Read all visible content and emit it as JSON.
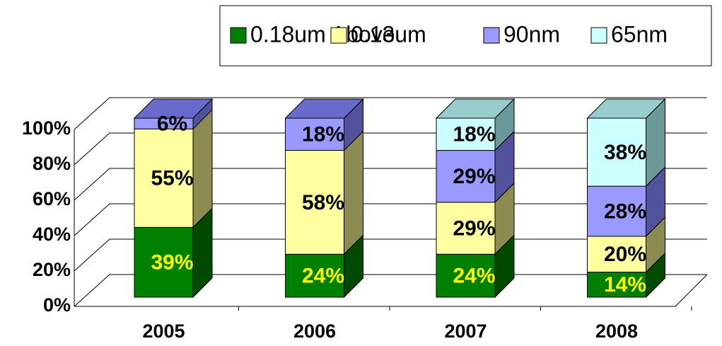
{
  "chart_data": {
    "type": "bar3d_stacked",
    "categories": [
      "2005",
      "2006",
      "2007",
      "2008"
    ],
    "series": [
      {
        "name": "0.18um Above",
        "color": "#008000",
        "side": "#004a00",
        "top": "#006400",
        "label_color": "#ffff00",
        "values": [
          39,
          24,
          24,
          14
        ],
        "value_labels": [
          "39%",
          "24%",
          "24%",
          "14%"
        ]
      },
      {
        "name": "0.13um",
        "color": "#ffffa0",
        "side": "#8c8c52",
        "top": "#c8c880",
        "label_color": "#000000",
        "values": [
          55,
          58,
          29,
          20
        ],
        "value_labels": [
          "55%",
          "58%",
          "29%",
          "20%"
        ]
      },
      {
        "name": "90nm",
        "color": "#9999ff",
        "side": "#52529c",
        "top": "#6a6acc",
        "label_color": "#000000",
        "values": [
          6,
          18,
          29,
          28
        ],
        "value_labels": [
          "6%",
          "18%",
          "29%",
          "28%"
        ]
      },
      {
        "name": "65nm",
        "color": "#ccffff",
        "side": "#6b9898",
        "top": "#99cccc",
        "label_color": "#000000",
        "values": [
          0,
          0,
          18,
          38
        ],
        "value_labels": [
          null,
          null,
          "18%",
          "38%"
        ]
      }
    ],
    "ylim": [
      0,
      100
    ],
    "yticks": [
      {
        "value": 0,
        "label": "0%"
      },
      {
        "value": 20,
        "label": "20%"
      },
      {
        "value": 40,
        "label": "40%"
      },
      {
        "value": 60,
        "label": "60%"
      },
      {
        "value": 80,
        "label": "80%"
      },
      {
        "value": 100,
        "label": "100%"
      }
    ],
    "grid": true,
    "legend": "top"
  }
}
